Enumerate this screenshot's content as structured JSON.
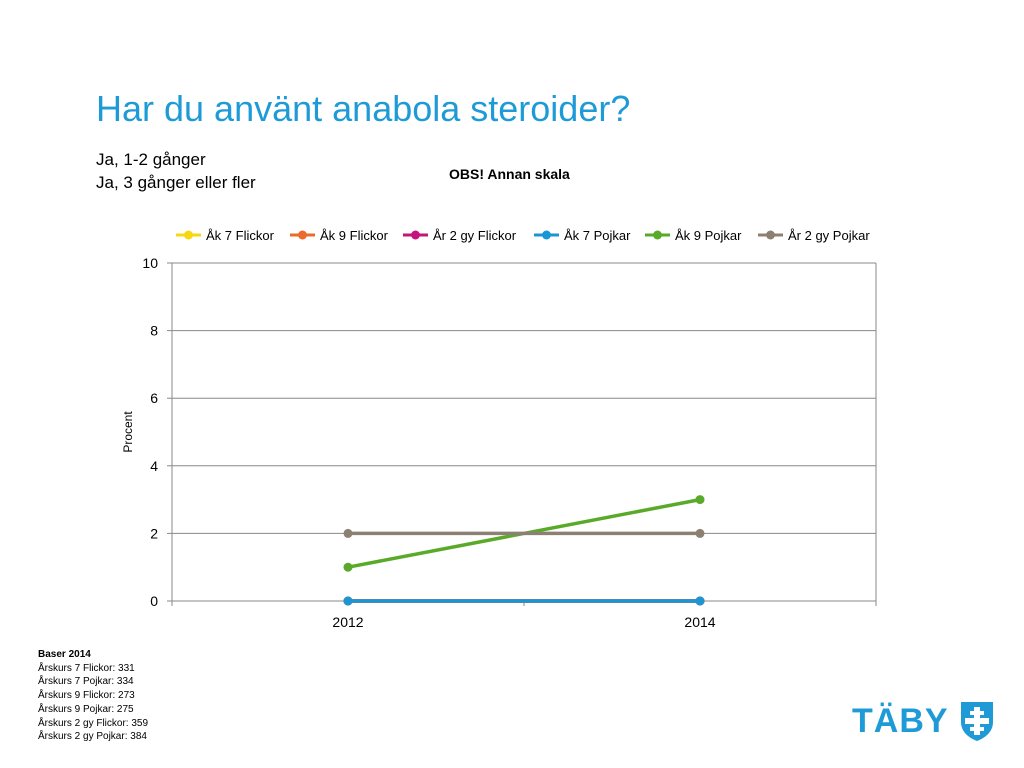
{
  "slide": {
    "title": "Har du använt anabola steroider?",
    "subtitle_lines": [
      "Ja, 1-2 gånger",
      "Ja, 3 gånger eller fler"
    ],
    "note": "OBS! Annan skala"
  },
  "chart_data": {
    "type": "line",
    "title": "",
    "xlabel": "",
    "ylabel": "Procent",
    "x": [
      "2012",
      "2014"
    ],
    "ylim": [
      0,
      10
    ],
    "yticks": [
      "0",
      "2",
      "4",
      "6",
      "8",
      "10"
    ],
    "grid": true,
    "legend": "top",
    "series": [
      {
        "name": "Åk 7 Flickor",
        "color": "#f5d80f",
        "values": [
          0,
          0
        ]
      },
      {
        "name": "Åk 9 Flickor",
        "color": "#ec6a2c",
        "values": [
          0,
          0
        ]
      },
      {
        "name": "År 2 gy Flickor",
        "color": "#c4137d",
        "values": [
          0,
          0
        ]
      },
      {
        "name": "Åk 7 Pojkar",
        "color": "#1a96d4",
        "values": [
          0,
          0
        ]
      },
      {
        "name": "Åk 9 Pojkar",
        "color": "#5aaa2a",
        "values": [
          1,
          3
        ]
      },
      {
        "name": "År 2 gy Pojkar",
        "color": "#8c8073",
        "values": [
          2,
          2
        ]
      }
    ]
  },
  "bases": {
    "heading": "Baser 2014",
    "lines": [
      "Årskurs 7 Flickor: 331",
      "Årskurs 7 Pojkar: 334",
      "Årskurs 9 Flickor: 273",
      "Årskurs 9 Pojkar: 275",
      "Årskurs 2 gy Flickor: 359",
      "Årskurs 2 gy Pojkar: 384"
    ]
  },
  "logo": {
    "text": "TÄBY",
    "color": "#1e9bd7",
    "icon": "taby-shield-cross-icon"
  }
}
